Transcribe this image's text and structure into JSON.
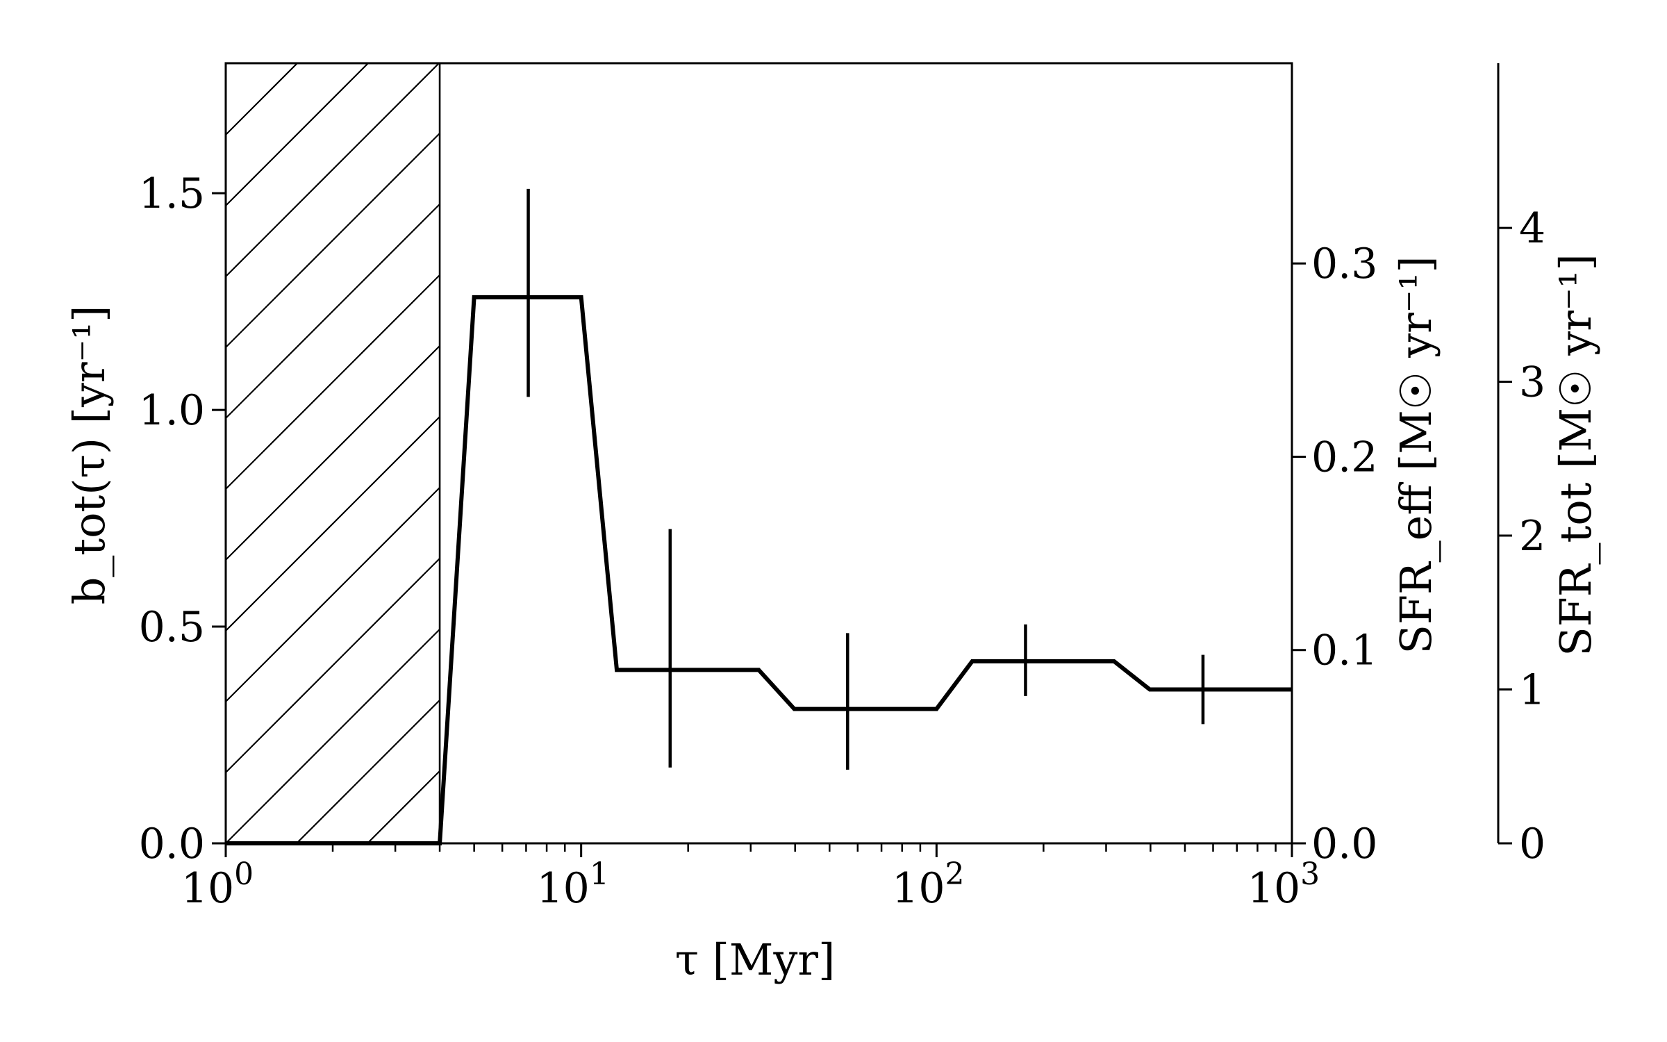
{
  "chart_data": {
    "type": "line",
    "x_scale": "log",
    "xlim": [
      1,
      1000
    ],
    "ylim": [
      0,
      1.8
    ],
    "xlabel": "τ [Myr]",
    "ylabel": "b_tot(τ) [yr⁻¹]",
    "x_ticks": [
      {
        "value": 1,
        "label": "10",
        "exp": "0"
      },
      {
        "value": 10,
        "label": "10",
        "exp": "1"
      },
      {
        "value": 100,
        "label": "10",
        "exp": "2"
      },
      {
        "value": 1000,
        "label": "10",
        "exp": "3"
      }
    ],
    "y_ticks": [
      {
        "value": 0.0,
        "label": "0.0"
      },
      {
        "value": 0.5,
        "label": "0.5"
      },
      {
        "value": 1.0,
        "label": "1.0"
      },
      {
        "value": 1.5,
        "label": "1.5"
      }
    ],
    "right_axis_1": {
      "label": "SFR_eff [M☉ yr⁻¹]",
      "ticks": [
        {
          "value": 0.0,
          "b_value": 0.0,
          "label": "0.0"
        },
        {
          "value": 0.1,
          "b_value": 0.446,
          "label": "0.1"
        },
        {
          "value": 0.2,
          "b_value": 0.892,
          "label": "0.2"
        },
        {
          "value": 0.3,
          "b_value": 1.338,
          "label": "0.3"
        }
      ]
    },
    "right_axis_2": {
      "label": "SFR_tot [M☉ yr⁻¹]",
      "ticks": [
        {
          "value": 0,
          "b_value": 0.0,
          "label": "0"
        },
        {
          "value": 1,
          "b_value": 0.355,
          "label": "1"
        },
        {
          "value": 2,
          "b_value": 0.71,
          "label": "2"
        },
        {
          "value": 3,
          "b_value": 1.065,
          "label": "3"
        },
        {
          "value": 4,
          "b_value": 1.42,
          "label": "4"
        }
      ]
    },
    "hatched_region": {
      "x_start": 1,
      "x_end": 4.0
    },
    "series": [
      {
        "x": [
          1,
          4.0,
          5.0,
          10.0,
          12.6,
          31.6,
          39.8,
          100,
          126,
          316,
          398,
          1000
        ],
        "y": [
          0,
          0,
          1.26,
          1.26,
          0.4,
          0.4,
          0.31,
          0.31,
          0.42,
          0.42,
          0.355,
          0.355
        ]
      }
    ],
    "error_bars": [
      {
        "x": 7.1,
        "y": 1.26,
        "ylow": 1.03,
        "yhigh": 1.51
      },
      {
        "x": 17.8,
        "y": 0.4,
        "ylow": 0.175,
        "yhigh": 0.725
      },
      {
        "x": 56.2,
        "y": 0.31,
        "ylow": 0.17,
        "yhigh": 0.485
      },
      {
        "x": 178,
        "y": 0.42,
        "ylow": 0.34,
        "yhigh": 0.505
      },
      {
        "x": 562,
        "y": 0.355,
        "ylow": 0.275,
        "yhigh": 0.435
      }
    ],
    "grid": false,
    "legend": "none"
  }
}
